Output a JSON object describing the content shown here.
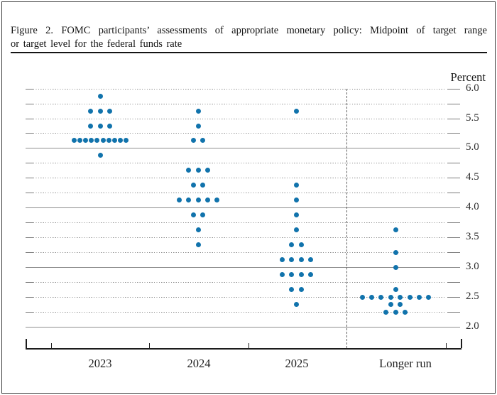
{
  "header": {
    "title_line1": "Figure 2.  FOMC participants’ assessments of appropriate monetary policy:  Midpoint of target range",
    "title_line2": "or target level for the federal funds rate"
  },
  "chart_data": {
    "type": "scatter",
    "title": "Figure 2. FOMC participants’ assessments of appropriate monetary policy: Midpoint of target range or target level for the federal funds rate",
    "unit_label": "Percent",
    "y_axis": {
      "min": 2.0,
      "max": 6.0,
      "grid_step": 0.25,
      "tick_step": 0.5,
      "tick_labels": [
        "6.0",
        "5.5",
        "5.0",
        "4.5",
        "4.0",
        "3.5",
        "3.0",
        "2.5",
        "2.0"
      ],
      "grid_style": "dotted at quarter points, solid at whole percents"
    },
    "categories": [
      "2023",
      "2024",
      "2025",
      "Longer run"
    ],
    "series": [
      {
        "category": "2023",
        "dots": [
          {
            "rate": 5.875,
            "count": 1
          },
          {
            "rate": 5.625,
            "count": 3
          },
          {
            "rate": 5.375,
            "count": 3
          },
          {
            "rate": 5.125,
            "count": 10
          },
          {
            "rate": 4.875,
            "count": 1
          }
        ]
      },
      {
        "category": "2024",
        "dots": [
          {
            "rate": 5.625,
            "count": 1
          },
          {
            "rate": 5.375,
            "count": 1
          },
          {
            "rate": 5.125,
            "count": 2
          },
          {
            "rate": 4.625,
            "count": 3
          },
          {
            "rate": 4.375,
            "count": 2
          },
          {
            "rate": 4.125,
            "count": 5
          },
          {
            "rate": 3.875,
            "count": 2
          },
          {
            "rate": 3.625,
            "count": 1
          },
          {
            "rate": 3.375,
            "count": 1
          }
        ]
      },
      {
        "category": "2025",
        "dots": [
          {
            "rate": 5.625,
            "count": 1
          },
          {
            "rate": 4.375,
            "count": 1
          },
          {
            "rate": 4.125,
            "count": 1
          },
          {
            "rate": 3.875,
            "count": 1
          },
          {
            "rate": 3.625,
            "count": 1
          },
          {
            "rate": 3.375,
            "count": 2
          },
          {
            "rate": 3.125,
            "count": 4
          },
          {
            "rate": 2.875,
            "count": 4
          },
          {
            "rate": 2.625,
            "count": 2
          },
          {
            "rate": 2.375,
            "count": 1
          }
        ]
      },
      {
        "category": "Longer run",
        "dots": [
          {
            "rate": 3.625,
            "count": 1
          },
          {
            "rate": 3.25,
            "count": 1
          },
          {
            "rate": 3.0,
            "count": 1
          },
          {
            "rate": 2.625,
            "count": 1
          },
          {
            "rate": 2.5,
            "count": 8
          },
          {
            "rate": 2.375,
            "count": 2
          },
          {
            "rate": 2.25,
            "count": 3
          }
        ]
      }
    ],
    "colors": {
      "dot": "#1173ac",
      "grid": "#8f8f8f",
      "axis": "#1c1c1c"
    },
    "legend": "none",
    "separator_after_category": "2025"
  }
}
